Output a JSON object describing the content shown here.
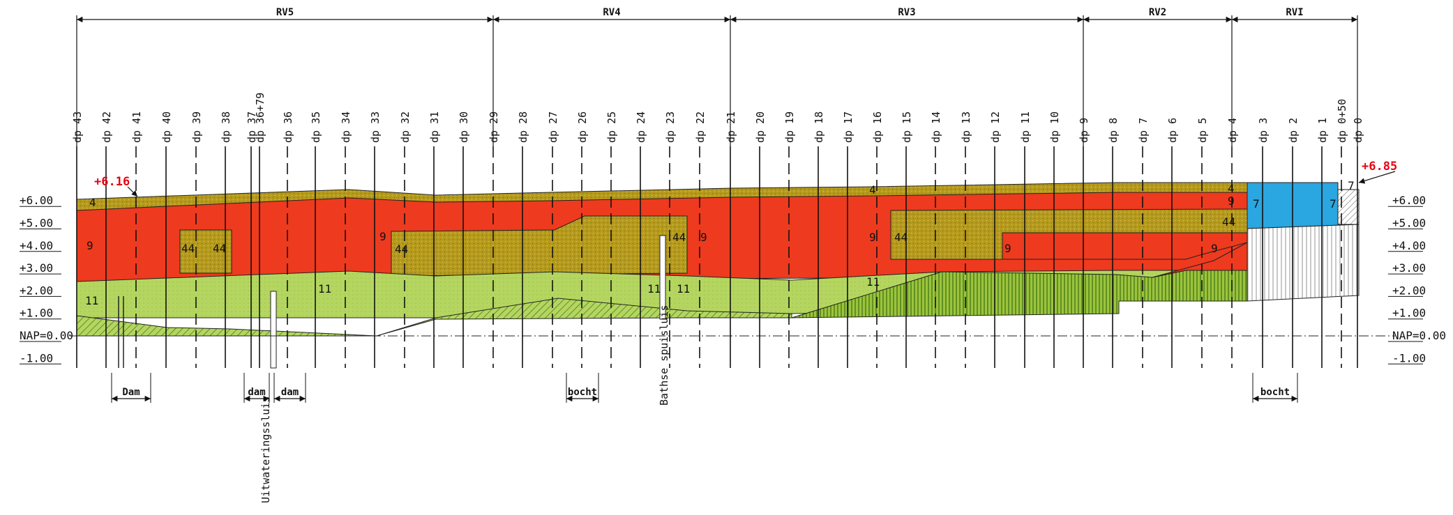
{
  "sections": [
    {
      "label": "RV5",
      "from_dp": "43",
      "to_dp": "29"
    },
    {
      "label": "RV4",
      "from_dp": "29",
      "to_dp": "21"
    },
    {
      "label": "RV3",
      "from_dp": "21",
      "to_dp": "9"
    },
    {
      "label": "RV2",
      "from_dp": "9",
      "to_dp": "4"
    },
    {
      "label": "RVI",
      "from_dp": "4",
      "to_dp": "0"
    }
  ],
  "dp_markers": [
    {
      "label": "dp 43",
      "dashed": false
    },
    {
      "label": "dp 42",
      "dashed": false
    },
    {
      "label": "dp 41",
      "dashed": true
    },
    {
      "label": "dp 40",
      "dashed": false
    },
    {
      "label": "dp 39",
      "dashed": true
    },
    {
      "label": "dp 38",
      "dashed": false
    },
    {
      "label": "dp 37",
      "dashed": false
    },
    {
      "label": "dp 36+79",
      "dashed": false
    },
    {
      "label": "dp 36",
      "dashed": true
    },
    {
      "label": "dp 35",
      "dashed": false
    },
    {
      "label": "dp 34",
      "dashed": true
    },
    {
      "label": "dp 33",
      "dashed": false
    },
    {
      "label": "dp 32",
      "dashed": true
    },
    {
      "label": "dp 31",
      "dashed": false
    },
    {
      "label": "dp 30",
      "dashed": false
    },
    {
      "label": "dp 29",
      "dashed": true
    },
    {
      "label": "dp 28",
      "dashed": false
    },
    {
      "label": "dp 27",
      "dashed": true
    },
    {
      "label": "dp 26",
      "dashed": true
    },
    {
      "label": "dp 25",
      "dashed": true
    },
    {
      "label": "dp 24",
      "dashed": false
    },
    {
      "label": "dp 23",
      "dashed": true
    },
    {
      "label": "dp 22",
      "dashed": true
    },
    {
      "label": "dp 21",
      "dashed": false
    },
    {
      "label": "dp 20",
      "dashed": false
    },
    {
      "label": "dp 19",
      "dashed": true
    },
    {
      "label": "dp 18",
      "dashed": false
    },
    {
      "label": "dp 17",
      "dashed": false
    },
    {
      "label": "dp 16",
      "dashed": true
    },
    {
      "label": "dp 15",
      "dashed": false
    },
    {
      "label": "dp 14",
      "dashed": true
    },
    {
      "label": "dp 13",
      "dashed": true
    },
    {
      "label": "dp 12",
      "dashed": false
    },
    {
      "label": "dp 11",
      "dashed": false
    },
    {
      "label": "dp 10",
      "dashed": false
    },
    {
      "label": "dp 9",
      "dashed": false
    },
    {
      "label": "dp 8",
      "dashed": false
    },
    {
      "label": "dp 7",
      "dashed": true
    },
    {
      "label": "dp 6",
      "dashed": false
    },
    {
      "label": "dp 5",
      "dashed": true
    },
    {
      "label": "dp 4",
      "dashed": true
    },
    {
      "label": "dp 3",
      "dashed": false
    },
    {
      "label": "dp 2",
      "dashed": false
    },
    {
      "label": "dp 1",
      "dashed": false
    },
    {
      "label": "dp 0+50",
      "dashed": true
    },
    {
      "label": "dp 0",
      "dashed": false
    }
  ],
  "elevation_labels": [
    "+6.00",
    "+5.00",
    "+4.00",
    "+3.00",
    "+2.00",
    "+1.00",
    "NAP=0.00",
    "-1.00"
  ],
  "elevation_values": [
    6,
    5,
    4,
    3,
    2,
    1,
    0,
    -1
  ],
  "crest_annotations": [
    {
      "text": "+6.16",
      "dp": "41"
    },
    {
      "text": "+6.85",
      "dp": "0"
    }
  ],
  "layer_labels": [
    {
      "text": "4",
      "layer": "top-left"
    },
    {
      "text": "9",
      "layer": "red-left"
    },
    {
      "text": "44",
      "layer": "block-39"
    },
    {
      "text": "44",
      "layer": "block-38"
    },
    {
      "text": "11",
      "layer": "green-left"
    },
    {
      "text": "11",
      "layer": "green-34"
    },
    {
      "text": "9",
      "layer": "red-33"
    },
    {
      "text": "44",
      "layer": "block-32"
    },
    {
      "text": "11",
      "layer": "green-24a"
    },
    {
      "text": "11",
      "layer": "green-24b"
    },
    {
      "text": "44",
      "layer": "block-22"
    },
    {
      "text": "9",
      "layer": "red-22"
    },
    {
      "text": "4",
      "layer": "top-17"
    },
    {
      "text": "9",
      "layer": "red-17"
    },
    {
      "text": "44",
      "layer": "block-16"
    },
    {
      "text": "11",
      "layer": "green-16"
    },
    {
      "text": "9",
      "layer": "red-12"
    },
    {
      "text": "4",
      "layer": "top-4"
    },
    {
      "text": "9",
      "layer": "red-4"
    },
    {
      "text": "44",
      "layer": "block-4"
    },
    {
      "text": "9",
      "layer": "red-4b"
    },
    {
      "text": "7",
      "layer": "blue-3"
    },
    {
      "text": "7",
      "layer": "blue-1"
    },
    {
      "text": "7",
      "layer": "blue-0"
    }
  ],
  "structures": [
    {
      "text": "Uitwateringssluis",
      "dp": "36+79"
    },
    {
      "text": "Bathse spuisluis",
      "dp": "23"
    }
  ],
  "range_annotations": [
    {
      "text": "Dam",
      "from": "42",
      "to": "41"
    },
    {
      "text": "dam",
      "from": "37",
      "to": "36+79"
    },
    {
      "text": "dam",
      "from": "36+79",
      "to": "35"
    },
    {
      "text": "bocht",
      "from": "26",
      "to": "25"
    },
    {
      "text": "bocht",
      "from": "3",
      "to": "2"
    }
  ],
  "layer_colors": {
    "olive": "#b59a1c",
    "red": "#ee3a1e",
    "light_green": "#b4d660",
    "hatch_green": "#4f8a1e",
    "blue": "#2aa6e0",
    "annotation_red": "#e30613"
  }
}
